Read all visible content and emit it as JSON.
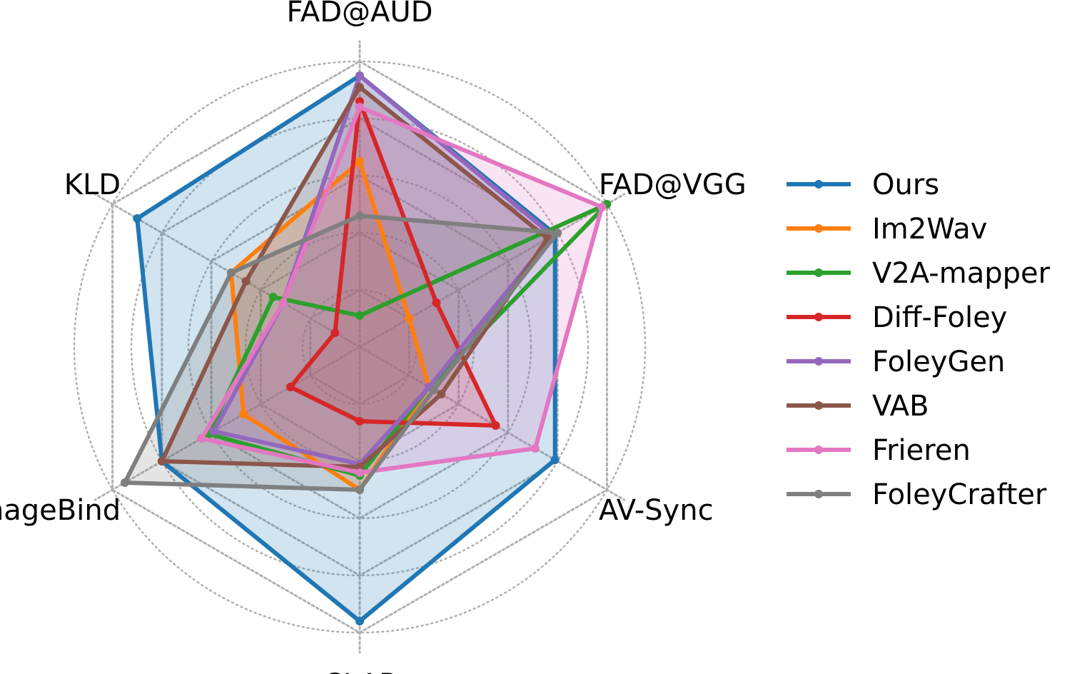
{
  "chart_data": {
    "type": "radar",
    "axes": [
      "FAD@AUD",
      "FAD@VGG",
      "AV-Sync",
      "CLAP",
      "ImageBind",
      "KLD"
    ],
    "rlim": [
      0,
      1
    ],
    "rings": [
      0.2,
      0.4,
      0.6,
      0.8,
      1.0
    ],
    "grid": true,
    "legend_position": "right",
    "series": [
      {
        "name": "Ours",
        "color": "#1f77b4",
        "filled": true,
        "values": [
          0.95,
          0.79,
          0.79,
          0.96,
          0.8,
          0.9
        ]
      },
      {
        "name": "Im2Wav",
        "color": "#ff7f0e",
        "filled": true,
        "values": [
          0.65,
          0.2,
          0.28,
          0.5,
          0.47,
          0.52
        ]
      },
      {
        "name": "V2A-mapper",
        "color": "#2ca02c",
        "filled": false,
        "values": [
          0.11,
          1.0,
          0.28,
          0.45,
          0.61,
          0.35
        ]
      },
      {
        "name": "Diff-Foley",
        "color": "#d62728",
        "filled": true,
        "values": [
          0.86,
          0.31,
          0.55,
          0.26,
          0.28,
          0.1
        ]
      },
      {
        "name": "FoleyGen",
        "color": "#9467bd",
        "filled": true,
        "values": [
          0.95,
          0.78,
          0.28,
          0.41,
          0.59,
          0.31
        ]
      },
      {
        "name": "VAB",
        "color": "#8c564b",
        "filled": true,
        "values": [
          0.91,
          0.76,
          0.33,
          0.42,
          0.8,
          0.46
        ]
      },
      {
        "name": "Frieren",
        "color": "#e377c2",
        "filled": true,
        "values": [
          0.84,
          0.98,
          0.71,
          0.44,
          0.64,
          0.31
        ]
      },
      {
        "name": "FoleyCrafter",
        "color": "#7f7f7f",
        "filled": true,
        "values": [
          0.46,
          0.8,
          0.3,
          0.5,
          0.95,
          0.52
        ]
      }
    ]
  }
}
